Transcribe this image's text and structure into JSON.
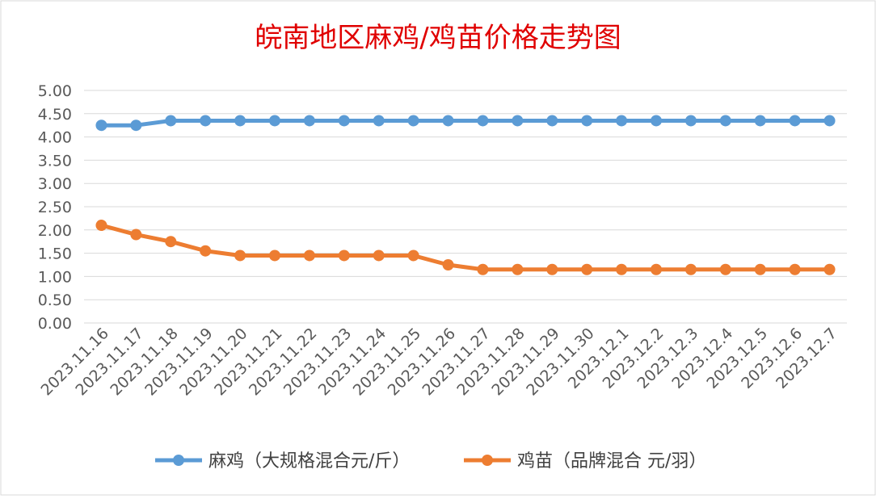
{
  "chart_data": {
    "type": "line",
    "title": "皖南地区麻鸡/鸡苗价格走势图",
    "categories": [
      "2023.11.16",
      "2023.11.17",
      "2023.11.18",
      "2023.11.19",
      "2023.11.20",
      "2023.11.21",
      "2023.11.22",
      "2023.11.23",
      "2023.11.24",
      "2023.11.25",
      "2023.11.26",
      "2023.11.27",
      "2023.11.28",
      "2023.11.29",
      "2023.11.30",
      "2023.12.1",
      "2023.12.2",
      "2023.12.3",
      "2023.12.4",
      "2023.12.5",
      "2023.12.6",
      "2023.12.7"
    ],
    "y_ticks": [
      "0.00",
      "0.50",
      "1.00",
      "1.50",
      "2.00",
      "2.50",
      "3.00",
      "3.50",
      "4.00",
      "4.50",
      "5.00"
    ],
    "ylim": [
      0,
      5
    ],
    "grid": true,
    "legend_position": "bottom",
    "series": [
      {
        "name": "麻鸡（大规格混合元/斤）",
        "color": "#5B9BD5",
        "values": [
          4.25,
          4.25,
          4.35,
          4.35,
          4.35,
          4.35,
          4.35,
          4.35,
          4.35,
          4.35,
          4.35,
          4.35,
          4.35,
          4.35,
          4.35,
          4.35,
          4.35,
          4.35,
          4.35,
          4.35,
          4.35,
          4.35
        ]
      },
      {
        "name": "鸡苗（品牌混合 元/羽）",
        "color": "#ED7D31",
        "values": [
          2.1,
          1.9,
          1.75,
          1.55,
          1.45,
          1.45,
          1.45,
          1.45,
          1.45,
          1.45,
          1.25,
          1.15,
          1.15,
          1.15,
          1.15,
          1.15,
          1.15,
          1.15,
          1.15,
          1.15,
          1.15,
          1.15
        ]
      }
    ],
    "colors": {
      "title": "#E00000",
      "grid": "#D9D9D9",
      "tick_text": "#595959",
      "border": "#D9D9D9"
    }
  }
}
